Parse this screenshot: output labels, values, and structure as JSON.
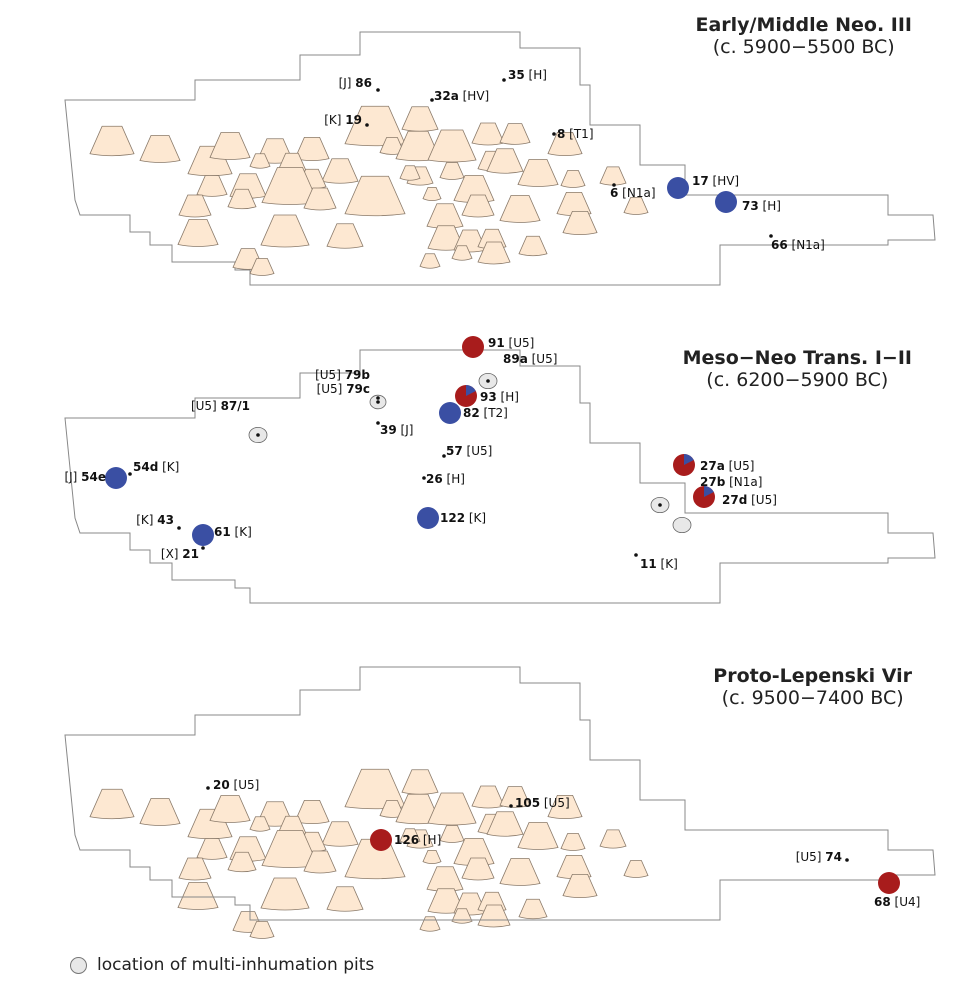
{
  "colors": {
    "house": "#fde8d2",
    "house_stroke": "#8a7a6a",
    "hap_blue": "#3a4fa3",
    "hap_red": "#a81c1c",
    "pit": "#e8e8e8",
    "outline": "#888888"
  },
  "panels": [
    {
      "title": "Early/Middle Neo. III",
      "period": "(c. 5900−5500 BC)",
      "samples": [
        {
          "id": "86",
          "hg": "[J]",
          "label_side": "left"
        },
        {
          "id": "35",
          "hg": "[H]",
          "label_side": "right"
        },
        {
          "id": "32a",
          "hg": "[HV]",
          "label_side": "right"
        },
        {
          "id": "19",
          "hg": "[K]",
          "label_side": "left"
        },
        {
          "id": "8",
          "hg": "[T1]",
          "label_side": "right"
        },
        {
          "id": "6",
          "hg": "[N1a]",
          "label_side": "right"
        },
        {
          "id": "17",
          "hg": "[HV]",
          "label_side": "right",
          "pie": "blue"
        },
        {
          "id": "73",
          "hg": "[H]",
          "label_side": "right",
          "pie": "blue"
        },
        {
          "id": "66",
          "hg": "[N1a]",
          "label_side": "right"
        }
      ]
    },
    {
      "title": "Meso−Neo Trans. I−II",
      "period": "(c. 6200−5900 BC)",
      "samples": [
        {
          "id": "91",
          "hg": "[U5]",
          "label_side": "right",
          "pie": "red"
        },
        {
          "id": "89a",
          "hg": "[U5]",
          "label_side": "right"
        },
        {
          "id": "79b",
          "hg": "[U5]",
          "label_side": "left"
        },
        {
          "id": "79c",
          "hg": "[U5]",
          "label_side": "left"
        },
        {
          "id": "93",
          "hg": "[H]",
          "label_side": "right",
          "pie": "mixed"
        },
        {
          "id": "82",
          "hg": "[T2]",
          "label_side": "right",
          "pie": "blue"
        },
        {
          "id": "87/1",
          "hg": "[U5]",
          "label_side": "left"
        },
        {
          "id": "39",
          "hg": "[J]",
          "label_side": "right"
        },
        {
          "id": "57",
          "hg": "[U5]",
          "label_side": "right"
        },
        {
          "id": "54d",
          "hg": "[K]",
          "label_side": "right"
        },
        {
          "id": "54e",
          "hg": "[J]",
          "label_side": "left",
          "pie": "blue"
        },
        {
          "id": "26",
          "hg": "[H]",
          "label_side": "right"
        },
        {
          "id": "27a",
          "hg": "[U5]",
          "label_side": "right",
          "pie": "mixed"
        },
        {
          "id": "27b",
          "hg": "[N1a]",
          "label_side": "right"
        },
        {
          "id": "27d",
          "hg": "[U5]",
          "label_side": "right",
          "pie": "mixed"
        },
        {
          "id": "43",
          "hg": "[K]",
          "label_side": "left"
        },
        {
          "id": "61",
          "hg": "[K]",
          "label_side": "right",
          "pie": "blue"
        },
        {
          "id": "21",
          "hg": "[X]",
          "label_side": "left"
        },
        {
          "id": "122",
          "hg": "[K]",
          "label_side": "right",
          "pie": "blue"
        },
        {
          "id": "11",
          "hg": "[K]",
          "label_side": "right"
        }
      ]
    },
    {
      "title": "Proto-Lepenski Vir",
      "period": "(c. 9500−7400 BC)",
      "samples": [
        {
          "id": "20",
          "hg": "[U5]",
          "label_side": "right"
        },
        {
          "id": "105",
          "hg": "[U5]",
          "label_side": "right"
        },
        {
          "id": "126",
          "hg": "[H]",
          "label_side": "right",
          "pie": "red"
        },
        {
          "id": "74",
          "hg": "[U5]",
          "label_side": "left"
        },
        {
          "id": "68",
          "hg": "[U4]",
          "label_side": "right",
          "pie": "red"
        }
      ]
    }
  ],
  "legend": {
    "label": "location of multi-inhumation pits",
    "icon": "grey-circle-icon"
  }
}
